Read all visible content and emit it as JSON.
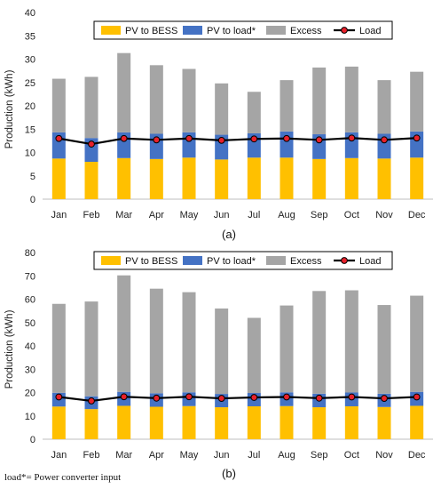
{
  "chart_data": [
    {
      "type": "bar",
      "stacked": true,
      "panel_label": "(a)",
      "ylabel": "Production (kWh)",
      "ylim": [
        0,
        40
      ],
      "yticks": [
        0,
        5,
        10,
        15,
        20,
        25,
        30,
        35,
        40
      ],
      "categories": [
        "Jan",
        "Feb",
        "Mar",
        "Apr",
        "May",
        "Jun",
        "Jul",
        "Aug",
        "Sep",
        "Oct",
        "Nov",
        "Dec"
      ],
      "legend_position": "top",
      "series": [
        {
          "name": "PV to BESS",
          "kind": "bar",
          "color": "#FFC000",
          "values": [
            8.7,
            8.0,
            8.8,
            8.6,
            8.9,
            8.5,
            8.9,
            8.9,
            8.6,
            8.8,
            8.7,
            8.9
          ]
        },
        {
          "name": "PV to load*",
          "kind": "bar",
          "color": "#4472C4",
          "values": [
            5.6,
            5.1,
            5.5,
            5.4,
            5.4,
            5.3,
            5.2,
            5.6,
            5.3,
            5.5,
            5.3,
            5.6
          ]
        },
        {
          "name": "Excess",
          "kind": "bar",
          "color": "#A5A5A5",
          "values": [
            11.5,
            13.1,
            17.0,
            14.7,
            13.6,
            11.0,
            8.9,
            11.0,
            14.3,
            14.1,
            11.5,
            12.8
          ]
        },
        {
          "name": "Load",
          "kind": "line",
          "color": "#000000",
          "marker_color": "#E8202A",
          "values": [
            13.0,
            11.8,
            13.0,
            12.7,
            13.0,
            12.6,
            12.9,
            13.0,
            12.7,
            13.1,
            12.7,
            13.1
          ]
        }
      ]
    },
    {
      "type": "bar",
      "stacked": true,
      "panel_label": "(b)",
      "ylabel": "Production (kWh)",
      "ylim": [
        0,
        80
      ],
      "yticks": [
        0,
        10,
        20,
        30,
        40,
        50,
        60,
        70,
        80
      ],
      "categories": [
        "Jan",
        "Feb",
        "Mar",
        "Apr",
        "May",
        "Jun",
        "Jul",
        "Aug",
        "Sep",
        "Oct",
        "Nov",
        "Dec"
      ],
      "legend_position": "top",
      "series": [
        {
          "name": "PV to BESS",
          "kind": "bar",
          "color": "#FFC000",
          "values": [
            14.0,
            12.9,
            14.3,
            13.9,
            14.2,
            13.7,
            14.1,
            14.2,
            13.7,
            14.1,
            13.8,
            14.3
          ]
        },
        {
          "name": "PV to load*",
          "kind": "bar",
          "color": "#4472C4",
          "values": [
            5.9,
            5.5,
            6.0,
            5.8,
            5.9,
            5.7,
            5.7,
            5.9,
            5.8,
            5.9,
            5.7,
            6.0
          ]
        },
        {
          "name": "Excess",
          "kind": "bar",
          "color": "#A5A5A5",
          "values": [
            38.1,
            40.6,
            49.9,
            44.8,
            42.9,
            36.6,
            32.2,
            37.2,
            44.0,
            43.8,
            38.0,
            41.2
          ]
        },
        {
          "name": "Load",
          "kind": "line",
          "color": "#000000",
          "marker_color": "#E8202A",
          "values": [
            18.1,
            16.4,
            18.2,
            17.6,
            18.2,
            17.5,
            17.9,
            18.1,
            17.6,
            18.1,
            17.5,
            18.1
          ]
        }
      ]
    }
  ],
  "footnote": "load*= Power converter input"
}
